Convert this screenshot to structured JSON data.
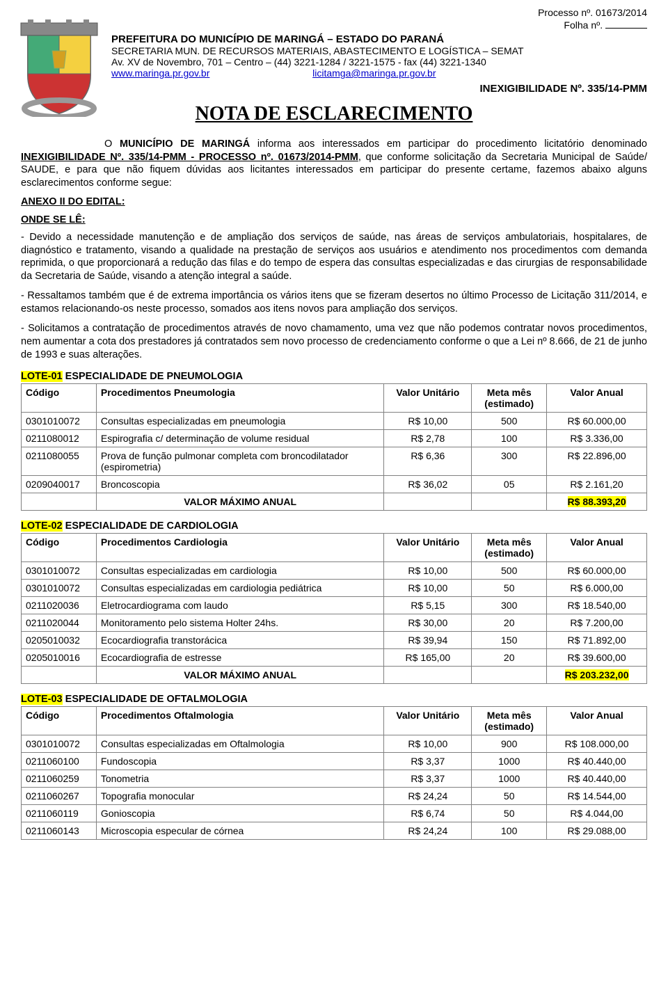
{
  "top": {
    "processo": "Processo nº. 01673/2014",
    "folha": "Folha nº."
  },
  "header": {
    "l1": "PREFEITURA DO MUNICÍPIO DE MARINGÁ – ESTADO DO PARANÁ",
    "l2": "SECRETARIA MUN. DE RECURSOS MATERIAIS, ABASTECIMENTO E LOGÍSTICA – SEMAT",
    "l3": "Av. XV de Novembro, 701 – Centro – (44) 3221-1284 / 3221-1575 - fax (44) 3221-1340",
    "site": "www.maringa.pr.gov.br",
    "email": "licitamga@maringa.pr.gov.br",
    "inex": "INEXIGIBILIDADE Nº. 335/14-PMM"
  },
  "title": "NOTA DE ESCLARECIMENTO",
  "intro": {
    "p1a": "O ",
    "p1b": "MUNICÍPIO DE MARINGÁ",
    "p1c": " informa aos interessados em participar do procedimento licitatório denominado ",
    "p1d": "INEXIGIBILIDADE Nº. 335/14-PMM - PROCESSO nº. 01673/2014-PMM",
    "p1e": ", que conforme solicitação da Secretaria Municipal de Saúde/ SAUDE, e para que não fiquem dúvidas aos licitantes interessados em participar do presente certame, fazemos abaixo alguns esclarecimentos conforme segue:"
  },
  "anexo": "ANEXO II DO EDITAL:",
  "onde": "ONDE SE LÊ:",
  "para1": "- Devido a necessidade manutenção e de ampliação dos serviços de saúde, nas áreas de serviços ambulatoriais, hospitalares, de diagnóstico e tratamento, visando a qualidade na prestação de serviços aos usuários e atendimento nos procedimentos com demanda reprimida, o que proporcionará a redução das filas e do tempo de espera das consultas especializadas e das cirurgias de responsabilidade da Secretaria de Saúde, visando a atenção integral a saúde.",
  "para2": "- Ressaltamos também que é de extrema importância os vários itens que se fizeram desertos no último Processo de Licitação 311/2014, e estamos relacionando-os neste processo, somados aos itens novos para ampliação dos serviços.",
  "para3": "- Solicitamos a contratação de procedimentos através de novo chamamento, uma vez que não podemos contratar novos procedimentos, nem aumentar a cota dos prestadores já contratados sem novo processo de credenciamento conforme o que a Lei nº 8.666, de 21 de junho de 1993 e suas alterações.",
  "table_headers": {
    "codigo": "Código",
    "proc_pneu": "Procedimentos Pneumologia",
    "proc_card": "Procedimentos Cardiologia",
    "proc_ofta": "Procedimentos Oftalmologia",
    "valor_unit": "Valor Unitário",
    "meta": "Meta mês (estimado)",
    "valor_anual": "Valor Anual",
    "total_label": "VALOR MÁXIMO ANUAL"
  },
  "lote1": {
    "hl": "LOTE-01",
    "title": " ESPECIALIDADE DE PNEUMOLOGIA",
    "rows": [
      {
        "cod": "0301010072",
        "proc": "Consultas especializadas em pneumologia",
        "unit": "R$ 10,00",
        "meta": "500",
        "anual": "R$ 60.000,00"
      },
      {
        "cod": "0211080012",
        "proc": "Espirografia c/ determinação de volume residual",
        "unit": "R$ 2,78",
        "meta": "100",
        "anual": "R$ 3.336,00"
      },
      {
        "cod": "0211080055",
        "proc": "Prova de função pulmonar completa com broncodilatador (espirometria)",
        "unit": "R$ 6,36",
        "meta": "300",
        "anual": "R$ 22.896,00"
      },
      {
        "cod": "0209040017",
        "proc": "Broncoscopia",
        "unit": "R$ 36,02",
        "meta": "05",
        "anual": "R$ 2.161,20"
      }
    ],
    "total": "R$ 88.393,20"
  },
  "lote2": {
    "hl": "LOTE-02",
    "title": "  ESPECIALIDADE DE CARDIOLOGIA",
    "rows": [
      {
        "cod": "0301010072",
        "proc": "Consultas especializadas em cardiologia",
        "unit": "R$ 10,00",
        "meta": "500",
        "anual": "R$ 60.000,00"
      },
      {
        "cod": "0301010072",
        "proc": "Consultas especializadas em cardiologia pediátrica",
        "unit": "R$ 10,00",
        "meta": "50",
        "anual": "R$ 6.000,00"
      },
      {
        "cod": "0211020036",
        "proc": "Eletrocardiograma com laudo",
        "unit": "R$ 5,15",
        "meta": "300",
        "anual": "R$ 18.540,00"
      },
      {
        "cod": "0211020044",
        "proc": "Monitoramento pelo sistema Holter 24hs.",
        "unit": "R$ 30,00",
        "meta": "20",
        "anual": "R$ 7.200,00"
      },
      {
        "cod": "0205010032",
        "proc": "Ecocardiografia transtorácica",
        "unit": "R$ 39,94",
        "meta": "150",
        "anual": "R$ 71.892,00"
      },
      {
        "cod": "0205010016",
        "proc": "Ecocardiografia de estresse",
        "unit": "R$ 165,00",
        "meta": "20",
        "anual": "R$ 39.600,00"
      }
    ],
    "total": "R$ 203.232,00"
  },
  "lote3": {
    "hl": "LOTE-03",
    "title": "   ESPECIALIDADE DE OFTALMOLOGIA",
    "rows": [
      {
        "cod": "0301010072",
        "proc": "Consultas especializadas em Oftalmologia",
        "unit": "R$ 10,00",
        "meta": "900",
        "anual": "R$ 108.000,00"
      },
      {
        "cod": "0211060100",
        "proc": "Fundoscopia",
        "unit": "R$ 3,37",
        "meta": "1000",
        "anual": "R$ 40.440,00"
      },
      {
        "cod": "0211060259",
        "proc": "Tonometria",
        "unit": "R$ 3,37",
        "meta": "1000",
        "anual": "R$ 40.440,00"
      },
      {
        "cod": "0211060267",
        "proc": "Topografia monocular",
        "unit": "R$ 24,24",
        "meta": "50",
        "anual": "R$ 14.544,00"
      },
      {
        "cod": "0211060119",
        "proc": "Gonioscopia",
        "unit": "R$ 6,74",
        "meta": "50",
        "anual": "R$ 4.044,00"
      },
      {
        "cod": "0211060143",
        "proc": "Microscopia especular de córnea",
        "unit": "R$ 24,24",
        "meta": "100",
        "anual": "R$ 29.088,00"
      }
    ]
  },
  "colors": {
    "highlight": "#ffff00",
    "border": "#808080",
    "link": "#0000cc",
    "text": "#000000",
    "bg": "#ffffff"
  }
}
